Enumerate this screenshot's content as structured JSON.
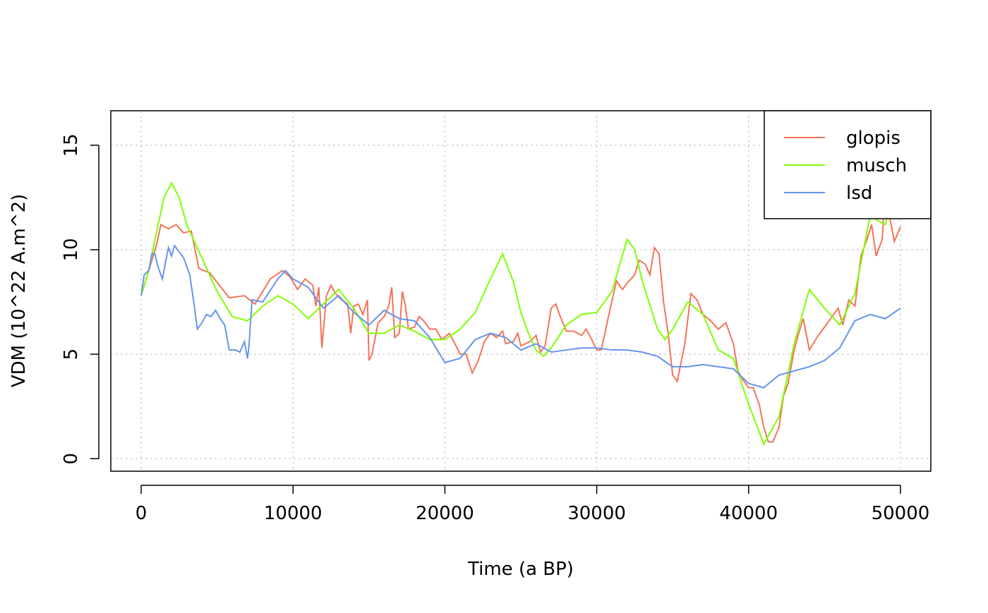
{
  "chart_data": {
    "type": "line",
    "xlabel": "Time (a BP)",
    "ylabel": "VDM (10^22 A.m^2)",
    "xlim": [
      -2000,
      52000
    ],
    "ylim": [
      -0.6,
      16.65
    ],
    "xticks": [
      0,
      10000,
      20000,
      30000,
      40000,
      50000
    ],
    "yticks": [
      0,
      5,
      10,
      15
    ],
    "grid": true,
    "legend": "topright",
    "series": [
      {
        "name": "glopis",
        "color": "#f4735a",
        "x": [
          0,
          500,
          1000,
          1300,
          1800,
          2300,
          2800,
          3300,
          3800,
          4500,
          5800,
          6800,
          7500,
          8500,
          9300,
          9800,
          10300,
          10800,
          11300,
          11500,
          11700,
          11900,
          12200,
          12500,
          12800,
          13200,
          13600,
          13800,
          14000,
          14300,
          14600,
          14900,
          15000,
          15200,
          15600,
          16000,
          16300,
          16500,
          16700,
          17000,
          17200,
          17400,
          17600,
          18000,
          18300,
          18600,
          19000,
          19400,
          19800,
          20300,
          20800,
          21000,
          21400,
          21800,
          22200,
          22600,
          23000,
          23400,
          23800,
          24000,
          24500,
          24800,
          25000,
          25600,
          26000,
          26300,
          26600,
          27000,
          27300,
          27600,
          28000,
          28500,
          29000,
          29300,
          29600,
          30000,
          30300,
          30800,
          31300,
          31700,
          32000,
          32500,
          32800,
          33200,
          33500,
          33800,
          34100,
          34400,
          34700,
          35000,
          35300,
          35800,
          36200,
          36600,
          37000,
          37500,
          38000,
          38500,
          39000,
          39300,
          39600,
          40000,
          40300,
          40700,
          41000,
          41300,
          41600,
          42000,
          42300,
          42600,
          43000,
          43300,
          43600,
          44000,
          44500,
          45000,
          45500,
          45900,
          46200,
          46600,
          47000,
          47400,
          47800,
          48100,
          48400,
          48800,
          49000,
          49300,
          49600,
          50000
        ],
        "values": [
          7.8,
          9,
          10.2,
          11.2,
          11,
          11.2,
          10.8,
          10.9,
          9.1,
          8.9,
          7.7,
          7.8,
          7.4,
          8.6,
          9,
          8.7,
          8.1,
          8.6,
          8.3,
          7.3,
          8.2,
          5.3,
          7.8,
          8.3,
          7.9,
          7.6,
          7.4,
          6,
          7.3,
          7.4,
          6.9,
          7.6,
          4.7,
          5,
          6.5,
          6.8,
          7.3,
          8.2,
          5.8,
          6,
          8,
          7.3,
          6.2,
          6.3,
          6.8,
          6.6,
          6.2,
          6.2,
          5.7,
          6,
          5.3,
          5,
          5,
          4.1,
          4.7,
          5.6,
          6,
          5.8,
          6.1,
          5.5,
          5.6,
          6,
          5.4,
          5.6,
          5.9,
          5.1,
          5.4,
          7.2,
          7.4,
          6.8,
          6.1,
          6.1,
          5.9,
          6.2,
          5.8,
          5.2,
          5.2,
          6.9,
          8.5,
          8.1,
          8.4,
          8.8,
          9.5,
          9.3,
          8.8,
          10.1,
          9.8,
          7.5,
          6,
          4,
          3.7,
          5.5,
          7.9,
          7.6,
          6.9,
          6.6,
          6.2,
          6.5,
          5.5,
          4.2,
          3.8,
          3.4,
          3.4,
          2.6,
          1.5,
          0.8,
          0.8,
          1.5,
          3,
          3.6,
          5.2,
          6,
          6.7,
          5.2,
          5.8,
          6.3,
          6.8,
          7.2,
          6.4,
          7.6,
          7.3,
          9.7,
          10.5,
          11.2,
          9.7,
          10.5,
          13,
          11.5,
          10.4,
          11.1
        ]
      },
      {
        "name": "musch",
        "color": "#7fff00",
        "x": [
          0,
          500,
          1000,
          1500,
          2000,
          2500,
          3000,
          4000,
          5000,
          6000,
          7000,
          8000,
          9000,
          10000,
          11000,
          12000,
          13000,
          14000,
          15000,
          16000,
          17000,
          18000,
          19000,
          20000,
          21000,
          22000,
          23000,
          23800,
          24500,
          25000,
          25500,
          26000,
          26500,
          27000,
          28000,
          29000,
          30000,
          31000,
          32000,
          32500,
          33000,
          34000,
          34500,
          35000,
          36000,
          37000,
          38000,
          39000,
          40000,
          41000,
          42000,
          43000,
          44000,
          45000,
          46000,
          47000,
          48000,
          49000,
          50000
        ],
        "values": [
          7.8,
          9,
          10.8,
          12.5,
          13.2,
          12.5,
          11.2,
          9.6,
          8,
          6.8,
          6.6,
          7.3,
          7.8,
          7.4,
          6.7,
          7.4,
          8.1,
          7.2,
          6,
          6,
          6.4,
          6.1,
          5.7,
          5.7,
          6.2,
          7,
          8.6,
          9.8,
          8.5,
          7,
          6,
          5.2,
          4.9,
          5.3,
          6.4,
          6.9,
          7,
          8,
          10.5,
          10,
          8.5,
          6.2,
          5.7,
          6.2,
          7.5,
          6.9,
          5.2,
          4.8,
          2.6,
          0.7,
          2,
          5.5,
          8.1,
          7.2,
          6.4,
          7.9,
          11.6,
          11.2,
          14
        ]
      },
      {
        "name": "lsd",
        "color": "#6495ed",
        "x": [
          0,
          200,
          500,
          700,
          900,
          1100,
          1400,
          1600,
          1800,
          2000,
          2200,
          2500,
          2800,
          3200,
          3500,
          3700,
          4000,
          4300,
          4600,
          4900,
          5200,
          5500,
          5800,
          6200,
          6500,
          6800,
          7000,
          7100,
          7300,
          8000,
          9000,
          9500,
          10000,
          11000,
          12000,
          13000,
          14000,
          15000,
          16000,
          17000,
          18000,
          19000,
          20000,
          21000,
          22000,
          23000,
          24000,
          25000,
          26000,
          27000,
          28000,
          29000,
          30000,
          31000,
          32000,
          33000,
          34000,
          35000,
          36000,
          37000,
          38000,
          39000,
          40000,
          41000,
          42000,
          43000,
          44000,
          45000,
          46000,
          47000,
          48000,
          49000,
          50000
        ],
        "values": [
          7.8,
          8.8,
          9,
          9.8,
          9.8,
          9.2,
          8.6,
          9.4,
          10.1,
          9.7,
          10.2,
          9.9,
          9.6,
          8.8,
          7.3,
          6.2,
          6.5,
          6.9,
          6.8,
          7.1,
          6.7,
          6.4,
          5.2,
          5.2,
          5.1,
          5.6,
          4.8,
          5.4,
          7.6,
          7.5,
          8.6,
          9,
          8.6,
          8.2,
          7.2,
          7.8,
          7,
          6.4,
          7.1,
          6.7,
          6.6,
          5.8,
          4.6,
          4.8,
          5.7,
          6,
          5.8,
          5.2,
          5.5,
          5.1,
          5.2,
          5.3,
          5.3,
          5.2,
          5.2,
          5.1,
          4.9,
          4.4,
          4.4,
          4.5,
          4.4,
          4.3,
          3.6,
          3.4,
          4,
          4.2,
          4.4,
          4.7,
          5.3,
          6.6,
          6.9,
          6.7,
          7.2
        ]
      }
    ]
  }
}
